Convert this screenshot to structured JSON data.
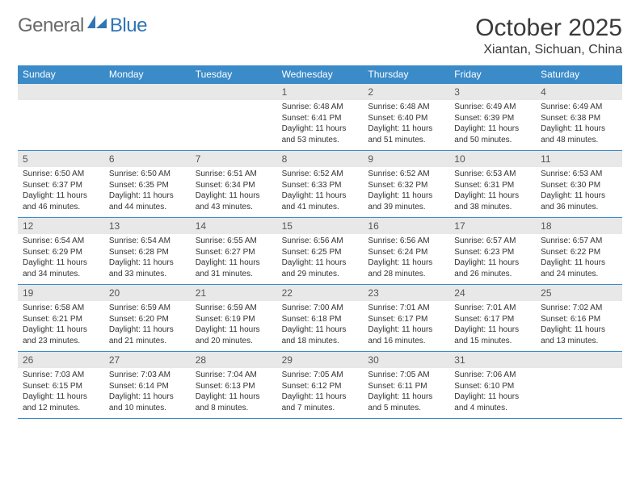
{
  "brand": {
    "general": "General",
    "blue": "Blue"
  },
  "title": {
    "month": "October 2025",
    "location": "Xiantan, Sichuan, China"
  },
  "colors": {
    "header_bg": "#3b8bc9",
    "header_text": "#ffffff",
    "daynum_bg": "#e8e8e8",
    "rule": "#3b8bc9",
    "logo_gray": "#6a6a6a",
    "logo_blue": "#2f75b5"
  },
  "day_names": [
    "Sunday",
    "Monday",
    "Tuesday",
    "Wednesday",
    "Thursday",
    "Friday",
    "Saturday"
  ],
  "weeks": [
    [
      {
        "n": "",
        "sr": "",
        "ss": "",
        "dl": ""
      },
      {
        "n": "",
        "sr": "",
        "ss": "",
        "dl": ""
      },
      {
        "n": "",
        "sr": "",
        "ss": "",
        "dl": ""
      },
      {
        "n": "1",
        "sr": "6:48 AM",
        "ss": "6:41 PM",
        "dl": "11 hours and 53 minutes."
      },
      {
        "n": "2",
        "sr": "6:48 AM",
        "ss": "6:40 PM",
        "dl": "11 hours and 51 minutes."
      },
      {
        "n": "3",
        "sr": "6:49 AM",
        "ss": "6:39 PM",
        "dl": "11 hours and 50 minutes."
      },
      {
        "n": "4",
        "sr": "6:49 AM",
        "ss": "6:38 PM",
        "dl": "11 hours and 48 minutes."
      }
    ],
    [
      {
        "n": "5",
        "sr": "6:50 AM",
        "ss": "6:37 PM",
        "dl": "11 hours and 46 minutes."
      },
      {
        "n": "6",
        "sr": "6:50 AM",
        "ss": "6:35 PM",
        "dl": "11 hours and 44 minutes."
      },
      {
        "n": "7",
        "sr": "6:51 AM",
        "ss": "6:34 PM",
        "dl": "11 hours and 43 minutes."
      },
      {
        "n": "8",
        "sr": "6:52 AM",
        "ss": "6:33 PM",
        "dl": "11 hours and 41 minutes."
      },
      {
        "n": "9",
        "sr": "6:52 AM",
        "ss": "6:32 PM",
        "dl": "11 hours and 39 minutes."
      },
      {
        "n": "10",
        "sr": "6:53 AM",
        "ss": "6:31 PM",
        "dl": "11 hours and 38 minutes."
      },
      {
        "n": "11",
        "sr": "6:53 AM",
        "ss": "6:30 PM",
        "dl": "11 hours and 36 minutes."
      }
    ],
    [
      {
        "n": "12",
        "sr": "6:54 AM",
        "ss": "6:29 PM",
        "dl": "11 hours and 34 minutes."
      },
      {
        "n": "13",
        "sr": "6:54 AM",
        "ss": "6:28 PM",
        "dl": "11 hours and 33 minutes."
      },
      {
        "n": "14",
        "sr": "6:55 AM",
        "ss": "6:27 PM",
        "dl": "11 hours and 31 minutes."
      },
      {
        "n": "15",
        "sr": "6:56 AM",
        "ss": "6:25 PM",
        "dl": "11 hours and 29 minutes."
      },
      {
        "n": "16",
        "sr": "6:56 AM",
        "ss": "6:24 PM",
        "dl": "11 hours and 28 minutes."
      },
      {
        "n": "17",
        "sr": "6:57 AM",
        "ss": "6:23 PM",
        "dl": "11 hours and 26 minutes."
      },
      {
        "n": "18",
        "sr": "6:57 AM",
        "ss": "6:22 PM",
        "dl": "11 hours and 24 minutes."
      }
    ],
    [
      {
        "n": "19",
        "sr": "6:58 AM",
        "ss": "6:21 PM",
        "dl": "11 hours and 23 minutes."
      },
      {
        "n": "20",
        "sr": "6:59 AM",
        "ss": "6:20 PM",
        "dl": "11 hours and 21 minutes."
      },
      {
        "n": "21",
        "sr": "6:59 AM",
        "ss": "6:19 PM",
        "dl": "11 hours and 20 minutes."
      },
      {
        "n": "22",
        "sr": "7:00 AM",
        "ss": "6:18 PM",
        "dl": "11 hours and 18 minutes."
      },
      {
        "n": "23",
        "sr": "7:01 AM",
        "ss": "6:17 PM",
        "dl": "11 hours and 16 minutes."
      },
      {
        "n": "24",
        "sr": "7:01 AM",
        "ss": "6:17 PM",
        "dl": "11 hours and 15 minutes."
      },
      {
        "n": "25",
        "sr": "7:02 AM",
        "ss": "6:16 PM",
        "dl": "11 hours and 13 minutes."
      }
    ],
    [
      {
        "n": "26",
        "sr": "7:03 AM",
        "ss": "6:15 PM",
        "dl": "11 hours and 12 minutes."
      },
      {
        "n": "27",
        "sr": "7:03 AM",
        "ss": "6:14 PM",
        "dl": "11 hours and 10 minutes."
      },
      {
        "n": "28",
        "sr": "7:04 AM",
        "ss": "6:13 PM",
        "dl": "11 hours and 8 minutes."
      },
      {
        "n": "29",
        "sr": "7:05 AM",
        "ss": "6:12 PM",
        "dl": "11 hours and 7 minutes."
      },
      {
        "n": "30",
        "sr": "7:05 AM",
        "ss": "6:11 PM",
        "dl": "11 hours and 5 minutes."
      },
      {
        "n": "31",
        "sr": "7:06 AM",
        "ss": "6:10 PM",
        "dl": "11 hours and 4 minutes."
      },
      {
        "n": "",
        "sr": "",
        "ss": "",
        "dl": ""
      }
    ]
  ],
  "labels": {
    "sunrise": "Sunrise: ",
    "sunset": "Sunset: ",
    "daylight": "Daylight: "
  }
}
